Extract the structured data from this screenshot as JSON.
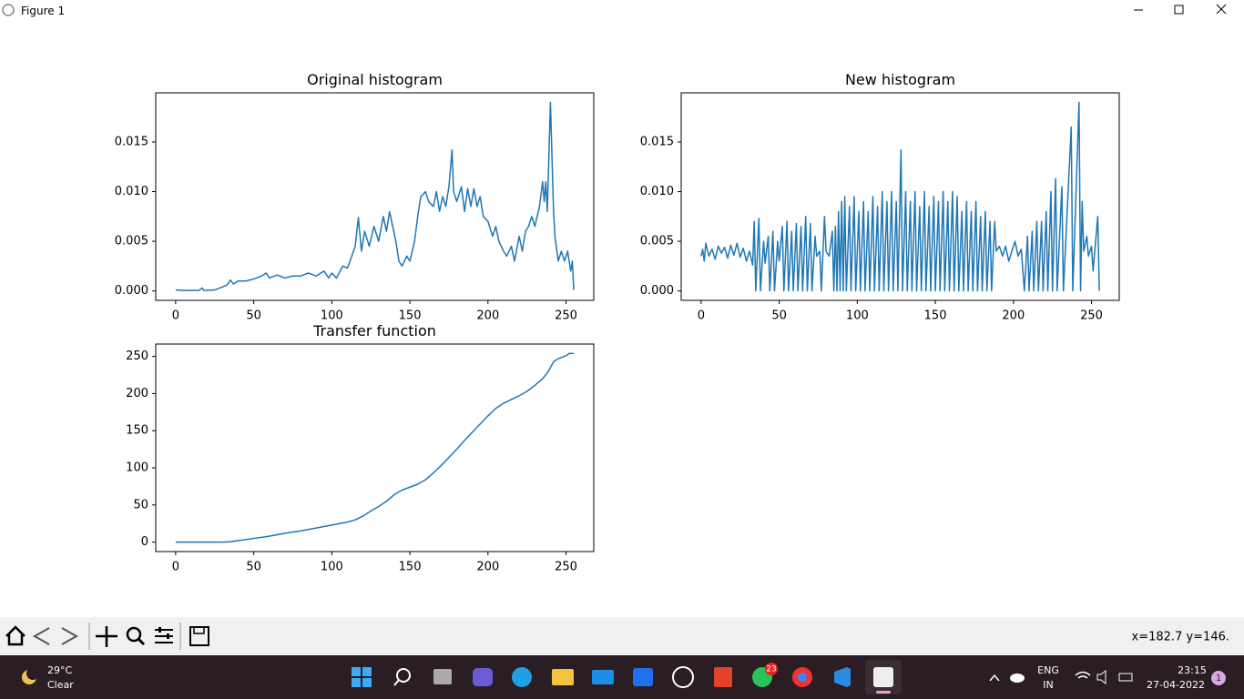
{
  "window": {
    "title": "Figure 1"
  },
  "chart_data": [
    {
      "type": "line",
      "title": "Original histogram",
      "color": "#1f77b4",
      "x": [
        0,
        5,
        10,
        15,
        17,
        18,
        25,
        30,
        33,
        35,
        37,
        40,
        45,
        50,
        55,
        58,
        60,
        65,
        70,
        75,
        80,
        85,
        90,
        95,
        98,
        100,
        103,
        107,
        110,
        113,
        115,
        117,
        119,
        121,
        124,
        127,
        130,
        133,
        135,
        137,
        139,
        141,
        143,
        145,
        148,
        150,
        153,
        155,
        157,
        160,
        162,
        165,
        167,
        169,
        171,
        173,
        175,
        177,
        178,
        180,
        183,
        185,
        187,
        189,
        191,
        193,
        195,
        197,
        200,
        203,
        205,
        207,
        210,
        212,
        215,
        217,
        220,
        222,
        224,
        226,
        228,
        230,
        233,
        235,
        236,
        237,
        238,
        240,
        242,
        243,
        245,
        247,
        249,
        251,
        253,
        254,
        255
      ],
      "values": [
        0.0001,
        5e-05,
        5e-05,
        5e-05,
        0.0003,
        5e-05,
        0.0001,
        0.0004,
        0.0006,
        0.0011,
        0.0007,
        0.001,
        0.001,
        0.0012,
        0.0015,
        0.0018,
        0.0013,
        0.0016,
        0.0013,
        0.0015,
        0.0015,
        0.0018,
        0.0015,
        0.002,
        0.0013,
        0.0018,
        0.0013,
        0.0025,
        0.0023,
        0.0036,
        0.0045,
        0.0074,
        0.004,
        0.006,
        0.0045,
        0.0065,
        0.005,
        0.0075,
        0.006,
        0.008,
        0.0065,
        0.005,
        0.003,
        0.0025,
        0.0035,
        0.003,
        0.005,
        0.0075,
        0.0095,
        0.01,
        0.009,
        0.0085,
        0.01,
        0.008,
        0.0095,
        0.0085,
        0.0105,
        0.0142,
        0.01,
        0.009,
        0.0105,
        0.008,
        0.0103,
        0.0085,
        0.0103,
        0.0085,
        0.0095,
        0.0075,
        0.007,
        0.0055,
        0.0065,
        0.005,
        0.004,
        0.0035,
        0.0045,
        0.003,
        0.0055,
        0.004,
        0.006,
        0.0065,
        0.0075,
        0.0065,
        0.0085,
        0.011,
        0.009,
        0.011,
        0.008,
        0.019,
        0.008,
        0.0053,
        0.003,
        0.004,
        0.003,
        0.004,
        0.002,
        0.003,
        0.0001
      ],
      "xlim": [
        -12.75,
        267.75
      ],
      "xticks": [
        0,
        50,
        100,
        150,
        200,
        250
      ],
      "ylim": [
        -0.00095,
        0.01995
      ],
      "yticks": [
        {
          "value": 0,
          "label": "0.000"
        },
        0.005,
        {
          "value": 0.01,
          "label": "0.010"
        },
        0.015
      ]
    },
    {
      "type": "line",
      "title": "New histogram",
      "color": "#1f77b4",
      "x": [
        0,
        1,
        2,
        3,
        5,
        7,
        9,
        11,
        13,
        15,
        17,
        19,
        21,
        23,
        25,
        27,
        29,
        31,
        33,
        34,
        35,
        37,
        38,
        40,
        41,
        43,
        44,
        46,
        47,
        49,
        50,
        52,
        53,
        55,
        56,
        58,
        59,
        61,
        62,
        64,
        65,
        67,
        68,
        70,
        71,
        73,
        74,
        76,
        77,
        79,
        80,
        82,
        84,
        85,
        86,
        87,
        88,
        89,
        90,
        91,
        92,
        93,
        95,
        96,
        98,
        99,
        101,
        102,
        104,
        105,
        107,
        108,
        110,
        111,
        113,
        114,
        116,
        117,
        119,
        120,
        122,
        123,
        125,
        126,
        128,
        129,
        131,
        132,
        134,
        135,
        137,
        138,
        140,
        141,
        143,
        144,
        146,
        147,
        149,
        150,
        152,
        153,
        155,
        156,
        158,
        159,
        161,
        162,
        164,
        165,
        167,
        168,
        170,
        171,
        173,
        174,
        176,
        177,
        179,
        180,
        182,
        183,
        185,
        186,
        188,
        189,
        191,
        193,
        195,
        197,
        199,
        201,
        203,
        205,
        207,
        209,
        210,
        212,
        213,
        215,
        216,
        218,
        219,
        221,
        222,
        224,
        225,
        227,
        228,
        231,
        232,
        237,
        238,
        242,
        243,
        244,
        245,
        247,
        248,
        250,
        251,
        254,
        255
      ],
      "values": [
        0.0035,
        0.0042,
        0.003,
        0.0048,
        0.0035,
        0.0042,
        0.0032,
        0.0045,
        0.0038,
        0.0044,
        0.0033,
        0.0046,
        0.0036,
        0.0048,
        0.0034,
        0.0043,
        0.003,
        0.004,
        0.0026,
        0.007,
        0,
        0.0073,
        0,
        0.005,
        0.0028,
        0.0055,
        0,
        0.006,
        0,
        0.005,
        0.003,
        0.0065,
        0,
        0.007,
        0,
        0.006,
        0,
        0.0068,
        0,
        0.0065,
        0,
        0.0075,
        0,
        0.0068,
        0,
        0.0055,
        0.0035,
        0.004,
        0,
        0.0075,
        0.004,
        0.0035,
        0.006,
        0,
        0.0065,
        0,
        0.008,
        0,
        0.009,
        0,
        0.0095,
        0,
        0.0085,
        0,
        0.0095,
        0,
        0.008,
        0,
        0.009,
        0,
        0.008,
        0,
        0.0095,
        0,
        0.0085,
        0,
        0.01,
        0,
        0.009,
        0,
        0.01,
        0,
        0.009,
        0,
        0.0142,
        0,
        0.01,
        0,
        0.009,
        0,
        0.01,
        0,
        0.0085,
        0,
        0.01,
        0,
        0.0085,
        0,
        0.0095,
        0,
        0.009,
        0,
        0.01,
        0,
        0.009,
        0,
        0.01,
        0,
        0.0095,
        0,
        0.008,
        0,
        0.009,
        0,
        0.008,
        0,
        0.009,
        0,
        0.0075,
        0,
        0.008,
        0,
        0.007,
        0,
        0.007,
        0.004,
        0.0045,
        0.0035,
        0.0045,
        0.003,
        0.004,
        0.005,
        0.0035,
        0.0042,
        0,
        0.0055,
        0,
        0.006,
        0,
        0.007,
        0,
        0.007,
        0,
        0.008,
        0,
        0.01,
        0,
        0.0113,
        0,
        0.0105,
        0,
        0.0165,
        0,
        0.019,
        0,
        0.009,
        0.004,
        0.0055,
        0.0035,
        0.0045,
        0.002,
        0.0075,
        0
      ],
      "xlim": [
        -12.75,
        267.75
      ],
      "xticks": [
        0,
        50,
        100,
        150,
        200,
        250
      ],
      "ylim": [
        -0.00095,
        0.01995
      ],
      "yticks": [
        {
          "value": 0,
          "label": "0.000"
        },
        0.005,
        {
          "value": 0.01,
          "label": "0.010"
        },
        0.015
      ]
    },
    {
      "type": "line",
      "title": "Transfer function",
      "color": "#1f77b4",
      "x": [
        0,
        10,
        20,
        30,
        35,
        40,
        50,
        60,
        70,
        80,
        90,
        100,
        110,
        115,
        120,
        125,
        130,
        135,
        140,
        145,
        150,
        155,
        160,
        165,
        170,
        175,
        180,
        185,
        190,
        195,
        200,
        205,
        210,
        215,
        220,
        225,
        230,
        235,
        238,
        240,
        242,
        245,
        250,
        252,
        255
      ],
      "values": [
        0,
        0,
        0,
        0,
        0.5,
        2,
        5,
        8,
        12,
        15,
        19,
        23,
        27,
        30,
        35,
        42,
        48,
        55,
        64,
        70,
        74,
        78,
        84,
        93,
        103,
        114,
        125,
        137,
        148,
        159,
        170,
        180,
        187,
        192,
        197,
        203,
        211,
        220,
        228,
        235,
        243,
        247,
        251,
        254,
        254
      ],
      "xlim": [
        -12.75,
        267.75
      ],
      "xticks": [
        0,
        50,
        100,
        150,
        200,
        250
      ],
      "ylim": [
        -12.7,
        266.7
      ],
      "yticks": [
        0,
        50,
        100,
        150,
        200,
        250
      ]
    }
  ],
  "status": "x=182.7 y=146.",
  "taskbar": {
    "temperature": "29°C",
    "weather": "Clear",
    "whatsapp_badge": "23",
    "language": "ENG",
    "region": "IN",
    "time": "23:15",
    "date": "27-04-2022",
    "notifications": "1"
  }
}
